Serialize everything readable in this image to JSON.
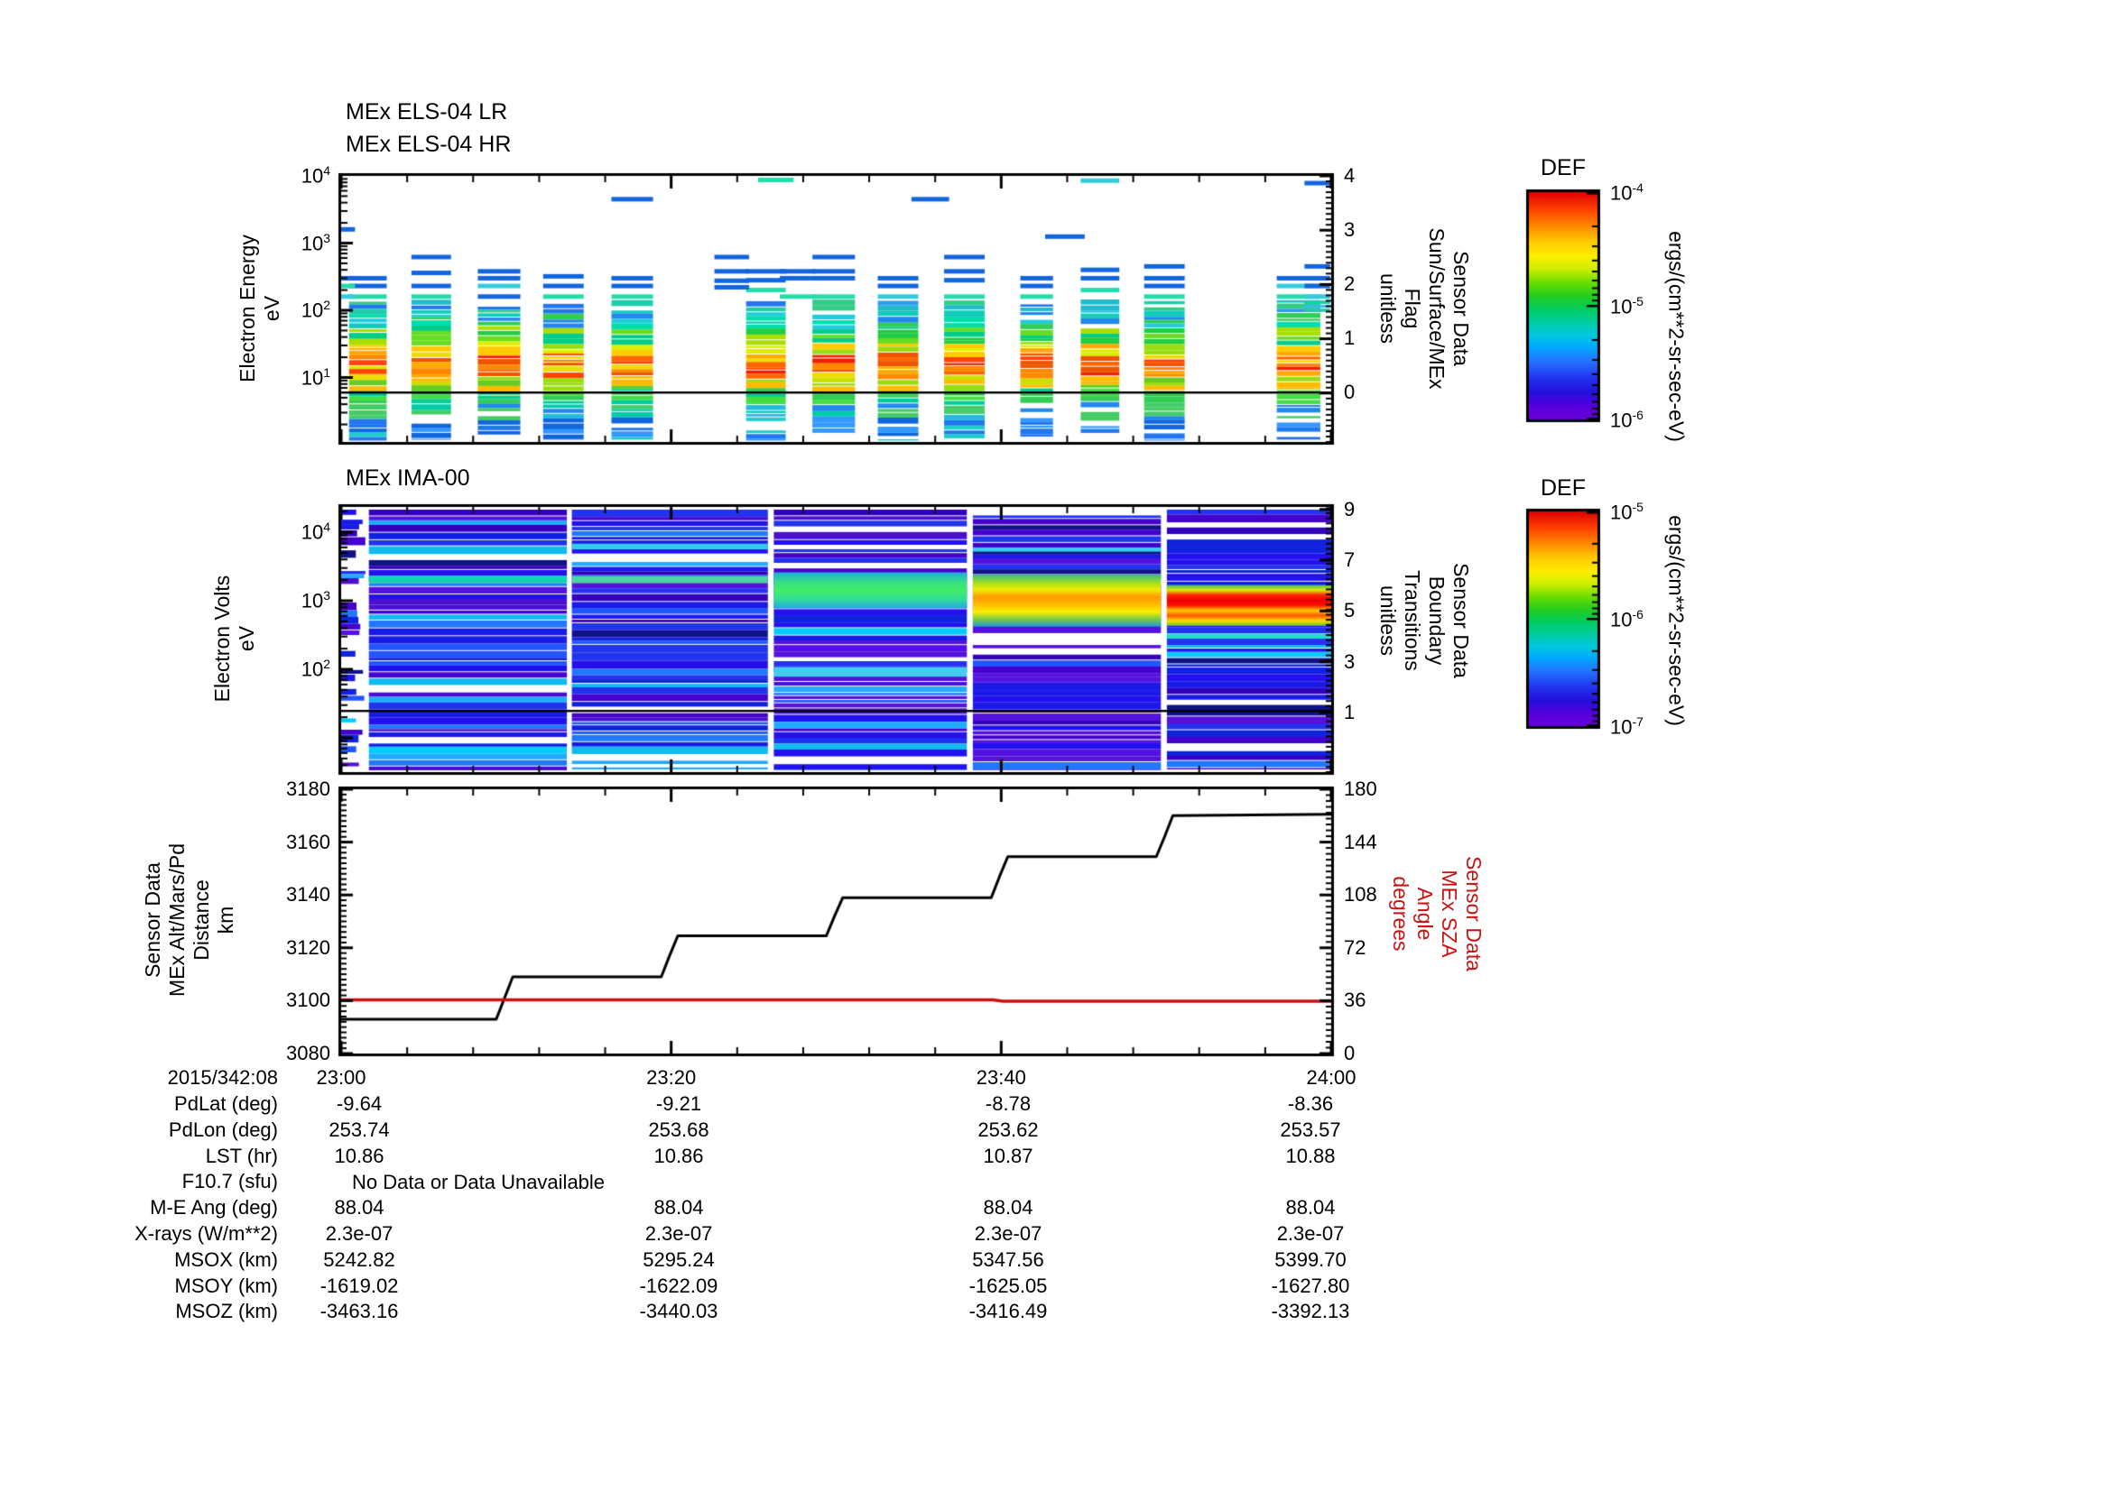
{
  "page": {
    "bg": "#ffffff",
    "red": "#cc1111"
  },
  "xaxis": {
    "date_label": "2015/342:08",
    "tick_labels": [
      "23:00",
      "23:20",
      "23:40",
      "24:00"
    ]
  },
  "colorbars": [
    {
      "title": "DEF",
      "units": "ergs/(cm**2-sr-sec-eV)",
      "tick_exps": [
        "-4",
        "-5",
        "-6"
      ]
    },
    {
      "title": "DEF",
      "units": "ergs/(cm**2-sr-sec-eV)",
      "tick_exps": [
        "-5",
        "-6",
        "-7"
      ]
    }
  ],
  "chart_data": [
    {
      "id": "els",
      "type": "heatmap",
      "title_lines": [
        "MEx ELS-04 LR",
        "MEx ELS-04 HR"
      ],
      "ylabel_lines": [
        "Electron Energy",
        "eV"
      ],
      "yscale": "log",
      "ymin": 1.1,
      "ymax": 10000,
      "ytick_exps": [
        "4",
        "3",
        "2",
        "1"
      ],
      "right_axis": {
        "label_lines": [
          "Sensor Data",
          "Sun/Surface/MEx",
          "Flag",
          "unitless"
        ],
        "ticks": [
          4,
          3,
          2,
          1,
          0
        ],
        "minor_step": 0.1,
        "bottom_value": -0.9,
        "hline_value": 0
      },
      "time_range": [
        "23:00",
        "24:00"
      ],
      "dense_range_ev": [
        1.3,
        140
      ],
      "line_colors": {
        "b": "#1166dd",
        "lb": "#3399ff",
        "c": "#33ccdd",
        "t": "#22ddaa"
      },
      "bursts": [
        {
          "x0": 0.008,
          "x1": 0.046,
          "hot": 0.6,
          "lines": [
            [
              300,
              "b"
            ],
            [
              230,
              "b"
            ],
            [
              160,
              "t"
            ]
          ]
        },
        {
          "x0": 0.071,
          "x1": 0.111,
          "hot": 0.85,
          "lines": [
            [
              620,
              "b"
            ],
            [
              360,
              "b"
            ],
            [
              230,
              "b"
            ],
            [
              160,
              "t"
            ]
          ]
        },
        {
          "x0": 0.138,
          "x1": 0.181,
          "hot": 0.55,
          "lines": [
            [
              380,
              "b"
            ],
            [
              300,
              "b"
            ],
            [
              230,
              "c"
            ],
            [
              160,
              "b"
            ]
          ]
        },
        {
          "x0": 0.204,
          "x1": 0.245,
          "hot": 0.95,
          "lines": [
            [
              320,
              "b"
            ],
            [
              230,
              "b"
            ],
            [
              160,
              "t"
            ]
          ]
        },
        {
          "x0": 0.273,
          "x1": 0.315,
          "hot": 0.7,
          "lines": [
            [
              4500,
              "b"
            ],
            [
              300,
              "b"
            ],
            [
              230,
              "b"
            ],
            [
              160,
              "t"
            ]
          ]
        },
        {
          "x0": 0.409,
          "x1": 0.449,
          "hot": 0.55,
          "lines": [
            [
              380,
              "b"
            ],
            [
              280,
              "b"
            ],
            [
              200,
              "t"
            ]
          ]
        },
        {
          "x0": 0.476,
          "x1": 0.519,
          "hot": 0.85,
          "lines": [
            [
              620,
              "b"
            ],
            [
              380,
              "b"
            ],
            [
              300,
              "b"
            ],
            [
              160,
              "t"
            ]
          ]
        },
        {
          "x0": 0.542,
          "x1": 0.583,
          "hot": 0.9,
          "lines": [
            [
              300,
              "b"
            ],
            [
              230,
              "b"
            ],
            [
              160,
              "c"
            ]
          ]
        },
        {
          "x0": 0.609,
          "x1": 0.65,
          "hot": 0.6,
          "lines": [
            [
              620,
              "b"
            ],
            [
              380,
              "b"
            ],
            [
              280,
              "b"
            ],
            [
              160,
              "t"
            ]
          ]
        },
        {
          "x0": 0.686,
          "x1": 0.719,
          "hot": 0.8,
          "lines": [
            [
              300,
              "b"
            ],
            [
              230,
              "b"
            ],
            [
              160,
              "t"
            ]
          ]
        },
        {
          "x0": 0.747,
          "x1": 0.786,
          "hot": 0.7,
          "lines": [
            [
              8500,
              "c"
            ],
            [
              400,
              "b"
            ],
            [
              300,
              "b"
            ],
            [
              200,
              "t"
            ]
          ]
        },
        {
          "x0": 0.811,
          "x1": 0.852,
          "hot": 0.9,
          "lines": [
            [
              450,
              "b"
            ],
            [
              300,
              "b"
            ],
            [
              230,
              "b"
            ],
            [
              160,
              "t"
            ]
          ]
        },
        {
          "x0": 0.945,
          "x1": 0.989,
          "hot": 0.75,
          "lines": [
            [
              300,
              "b"
            ],
            [
              230,
              "c"
            ],
            [
              160,
              "t"
            ]
          ]
        }
      ],
      "line_groups": [
        {
          "x0": 0.0,
          "x1": 0.014,
          "lines": [
            [
              1600,
              "b"
            ],
            [
              300,
              "b"
            ],
            [
              230,
              "t"
            ],
            [
              160,
              "c"
            ]
          ]
        },
        {
          "x0": 0.377,
          "x1": 0.412,
          "lines": [
            [
              620,
              "b"
            ],
            [
              380,
              "b"
            ],
            [
              275,
              "b"
            ],
            [
              220,
              "b"
            ]
          ]
        },
        {
          "x0": 0.421,
          "x1": 0.457,
          "lines": [
            [
              8700,
              "t"
            ]
          ]
        },
        {
          "x0": 0.443,
          "x1": 0.479,
          "lines": [
            [
              380,
              "b"
            ],
            [
              300,
              "b"
            ],
            [
              160,
              "t"
            ]
          ]
        },
        {
          "x0": 0.576,
          "x1": 0.614,
          "lines": [
            [
              4500,
              "b"
            ]
          ]
        },
        {
          "x0": 0.711,
          "x1": 0.751,
          "lines": [
            [
              1250,
              "b"
            ]
          ]
        },
        {
          "x0": 0.973,
          "x1": 0.999,
          "lines": [
            [
              7800,
              "b"
            ],
            [
              450,
              "b"
            ],
            [
              300,
              "b"
            ],
            [
              230,
              "b"
            ],
            [
              160,
              "c"
            ]
          ],
          "blob": [
            95,
            140
          ]
        }
      ]
    },
    {
      "id": "ima",
      "type": "heatmap",
      "title_lines": [
        "MEx IMA-00"
      ],
      "ylabel_lines": [
        "Electron Volts",
        "eV"
      ],
      "yscale": "log",
      "ymin": 3.2,
      "ymax": 25000,
      "ytick_exps": [
        "4",
        "3",
        "2"
      ],
      "right_axis": {
        "label_lines": [
          "Sensor Data",
          "Boundary",
          "Transitions",
          "unitless"
        ],
        "ticks": [
          9,
          7,
          5,
          3,
          1
        ],
        "minor_step": 0.2,
        "top_value": 9.1,
        "bottom_value": -1.35,
        "hline_value": 1
      },
      "columns": [
        {
          "x0": 0.0,
          "x1": 0.025,
          "ragged": true,
          "bands": []
        },
        {
          "x0": 0.028,
          "x1": 0.228,
          "bands": [
            {
              "e0": 1800,
              "e1": 2300,
              "stops": [
                "#00ddb8",
                "#22ccaa"
              ]
            }
          ]
        },
        {
          "x0": 0.233,
          "x1": 0.431,
          "bands": [
            {
              "e0": 5600,
              "e1": 6800,
              "stops": [
                "#33ccee",
                "#33ccee"
              ]
            },
            {
              "e0": 1800,
              "e1": 2300,
              "stops": [
                "#44ddaa",
                "#55cc99"
              ]
            }
          ]
        },
        {
          "x0": 0.437,
          "x1": 0.632,
          "bands": [
            {
              "e0": 780,
              "e1": 2600,
              "stops": [
                "#22aadd",
                "#33dd88",
                "#44ee66",
                "#33dd99",
                "#22aadd"
              ]
            },
            {
              "e0": 78,
              "e1": 108,
              "stops": [
                "#44ccee",
                "#44ccee"
              ]
            }
          ]
        },
        {
          "x0": 0.638,
          "x1": 0.828,
          "bands": [
            {
              "e0": 420,
              "e1": 2400,
              "stops": [
                "#33bb88",
                "#99dd22",
                "#eeee00",
                "#ff9900",
                "#ffbb00",
                "#ffee00",
                "#77cc44",
                "#2299dd"
              ]
            },
            {
              "e0": 5200,
              "e1": 6000,
              "stops": [
                "#33ccee",
                "#33ccee"
              ]
            }
          ]
        },
        {
          "x0": 0.834,
          "x1": 1.0,
          "bands": [
            {
              "e0": 430,
              "e1": 1700,
              "stops": [
                "#44bb66",
                "#ddee00",
                "#ff2200",
                "#ee0000",
                "#ff1100",
                "#ffcc00",
                "#ff5500",
                "#ffdd00",
                "#66bb44"
              ]
            },
            {
              "e0": 280,
              "e1": 330,
              "stops": [
                "#22ddcc",
                "#22ddcc"
              ]
            }
          ]
        }
      ]
    },
    {
      "id": "alt",
      "type": "line",
      "left_axis": {
        "label_lines": [
          "Sensor Data",
          "MEx Alt/Mars/Pd",
          "Distance",
          "km"
        ],
        "ticks": [
          3180,
          3160,
          3140,
          3120,
          3100,
          3080
        ],
        "range": [
          3080,
          3180
        ],
        "minor_step": 2
      },
      "right_axis": {
        "label_lines": [
          "Sensor Data",
          "MEx SZA",
          "Angle",
          "degrees"
        ],
        "ticks": [
          180,
          144,
          108,
          72,
          36,
          0
        ],
        "range": [
          0,
          180
        ],
        "minor_step": 4,
        "color": "#cc1111"
      },
      "series": [
        {
          "name": "altitude_km",
          "axis": "left",
          "color": "#000000",
          "width": 3,
          "points": [
            [
              0,
              3093
            ],
            [
              9.4,
              3093
            ],
            [
              9.9,
              3101
            ],
            [
              10.4,
              3109
            ],
            [
              19.4,
              3109
            ],
            [
              19.9,
              3117
            ],
            [
              20.4,
              3124.5
            ],
            [
              29.4,
              3124.5
            ],
            [
              29.9,
              3132
            ],
            [
              30.4,
              3139
            ],
            [
              39.4,
              3139
            ],
            [
              39.9,
              3147
            ],
            [
              40.4,
              3154.5
            ],
            [
              49.4,
              3154.5
            ],
            [
              49.9,
              3162
            ],
            [
              50.4,
              3170
            ],
            [
              60,
              3170.5
            ]
          ]
        },
        {
          "name": "sza_deg",
          "axis": "right",
          "color": "#cc1111",
          "width": 3.5,
          "points": [
            [
              0,
              36.5
            ],
            [
              39.5,
              36.5
            ],
            [
              40.1,
              35.7
            ],
            [
              60,
              35.6
            ]
          ]
        }
      ]
    }
  ],
  "table": {
    "date_label": "2015/342:08",
    "col_headers": [
      "23:00",
      "23:20",
      "23:40",
      "24:00"
    ],
    "rows": [
      {
        "label": "PdLat (deg)",
        "values": [
          "-9.64",
          "-9.21",
          "-8.78",
          "-8.36"
        ]
      },
      {
        "label": "PdLon (deg)",
        "values": [
          "253.74",
          "253.68",
          "253.62",
          "253.57"
        ]
      },
      {
        "label": "LST (hr)",
        "values": [
          "10.86",
          "10.86",
          "10.87",
          "10.88"
        ]
      },
      {
        "label": "F10.7 (sfu)",
        "values": [],
        "span_text": "No Data or Data Unavailable"
      },
      {
        "label": "M-E Ang (deg)",
        "values": [
          "88.04",
          "88.04",
          "88.04",
          "88.04"
        ]
      },
      {
        "label": "X-rays (W/m**2)",
        "values": [
          "2.3e-07",
          "2.3e-07",
          "2.3e-07",
          "2.3e-07"
        ]
      },
      {
        "label": "MSOX (km)",
        "values": [
          "5242.82",
          "5295.24",
          "5347.56",
          "5399.70"
        ]
      },
      {
        "label": "MSOY (km)",
        "values": [
          "-1619.02",
          "-1622.09",
          "-1625.05",
          "-1627.80"
        ]
      },
      {
        "label": "MSOZ (km)",
        "values": [
          "-3463.16",
          "-3440.03",
          "-3416.49",
          "-3392.13"
        ]
      }
    ]
  },
  "seed": 7
}
